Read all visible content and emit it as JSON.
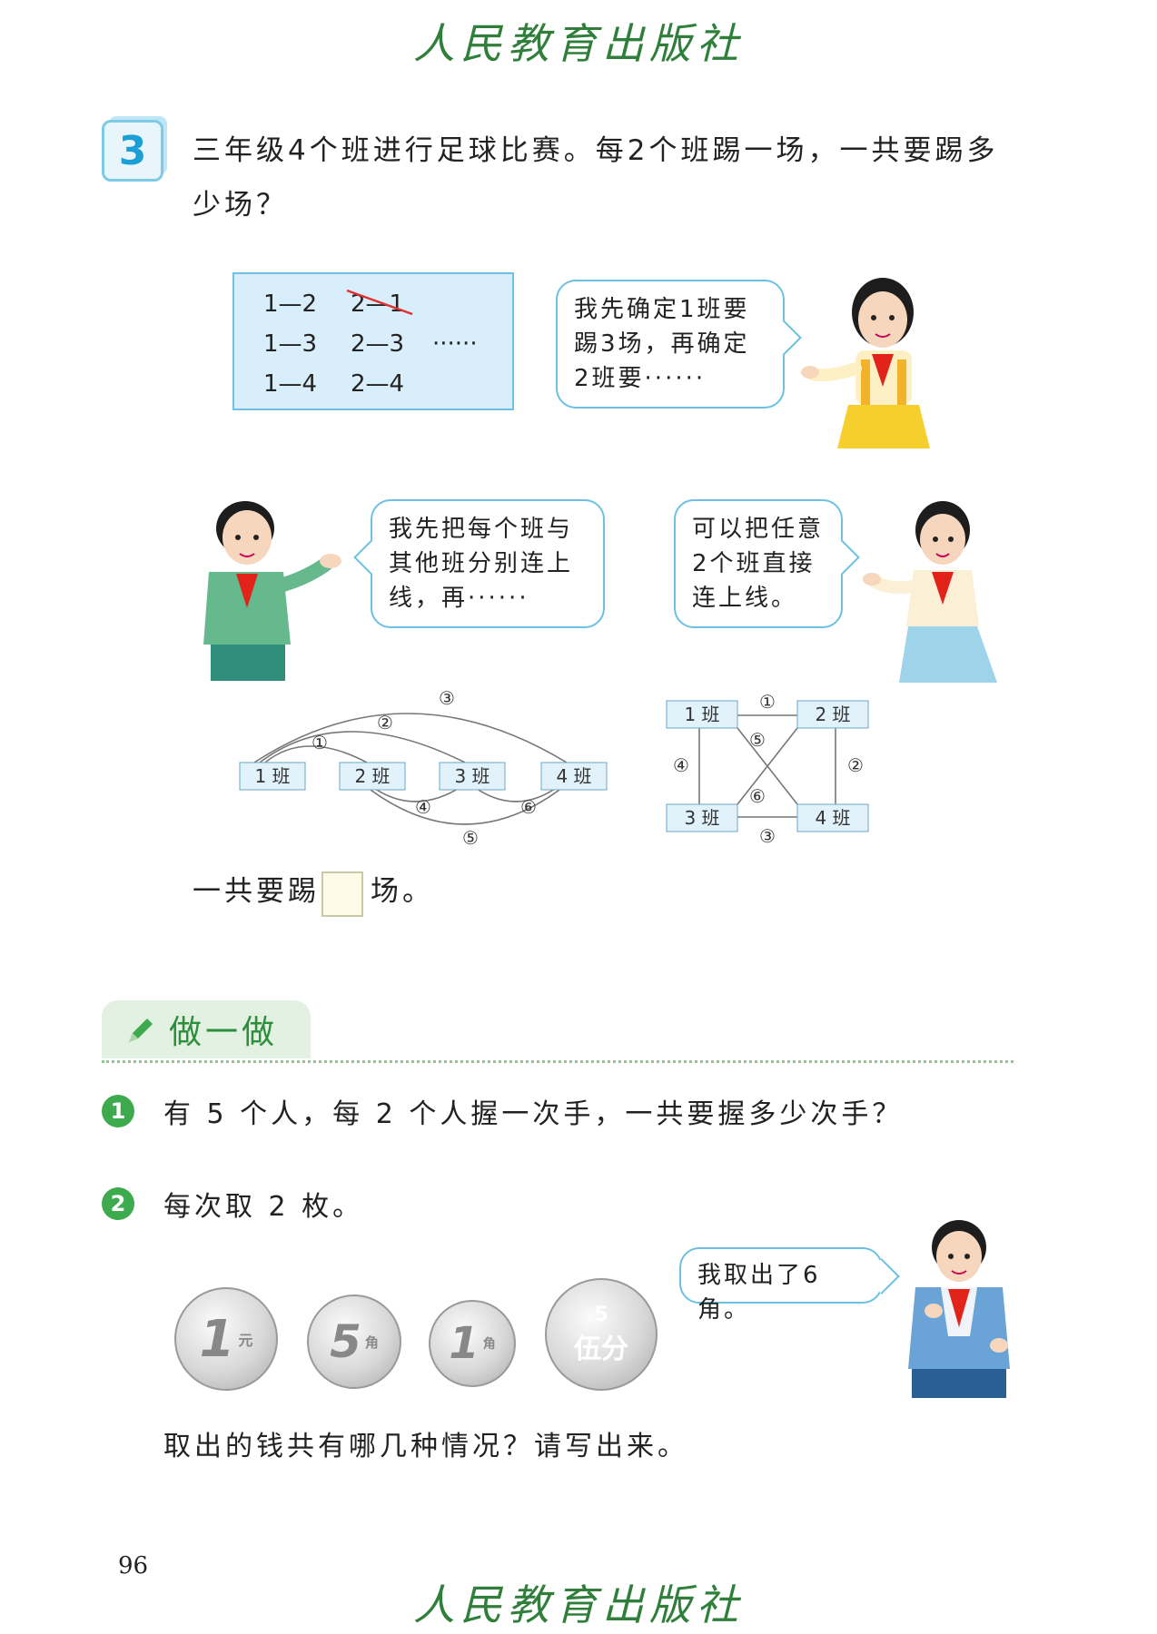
{
  "publisher": "人民教育出版社",
  "example": {
    "number": "3",
    "question_line1": "三年级4个班进行足球比赛。每2个班踢一场，一共要踢多",
    "question_line2": "少场？",
    "pairs": [
      "1—2",
      "2—1",
      "1—3",
      "2—3",
      "······",
      "1—4",
      "2—4"
    ],
    "bubble_girl_top": {
      "line1": "我先确定1班要",
      "line2": "踢3场，再确定",
      "line3": "2班要······"
    },
    "bubble_boy": {
      "line1": "我先把每个班与",
      "line2": "其他班分别连上",
      "line3": "线，再······"
    },
    "bubble_girl_right": {
      "line1": "可以把任意",
      "line2": "2个班直接",
      "line3": "连上线。"
    },
    "diagram_left": {
      "nodes": [
        "1 班",
        "2 班",
        "3 班",
        "4 班"
      ],
      "labels": [
        "①",
        "②",
        "③",
        "④",
        "⑤",
        "⑥"
      ]
    },
    "diagram_right": {
      "nodes": [
        "1 班",
        "2 班",
        "3 班",
        "4 班"
      ],
      "labels": [
        "①",
        "②",
        "③",
        "④",
        "⑤",
        "⑥"
      ]
    },
    "answer_prefix": "一共要踢",
    "answer_suffix": "场。"
  },
  "practice": {
    "tab_label": "做一做",
    "items": [
      {
        "num": "1",
        "text": "有 5 个人，每 2 个人握一次手，一共要握多少次手？"
      },
      {
        "num": "2",
        "text": "每次取 2 枚。"
      }
    ],
    "bubble_boy": "我取出了6角。",
    "coins": [
      {
        "value": "1",
        "unit": "元"
      },
      {
        "value": "5",
        "unit": "角"
      },
      {
        "value": "1",
        "unit": "角"
      },
      {
        "value": "5",
        "unit": "伍分"
      }
    ],
    "closing": "取出的钱共有哪几种情况？请写出来。"
  },
  "page_number": "96"
}
